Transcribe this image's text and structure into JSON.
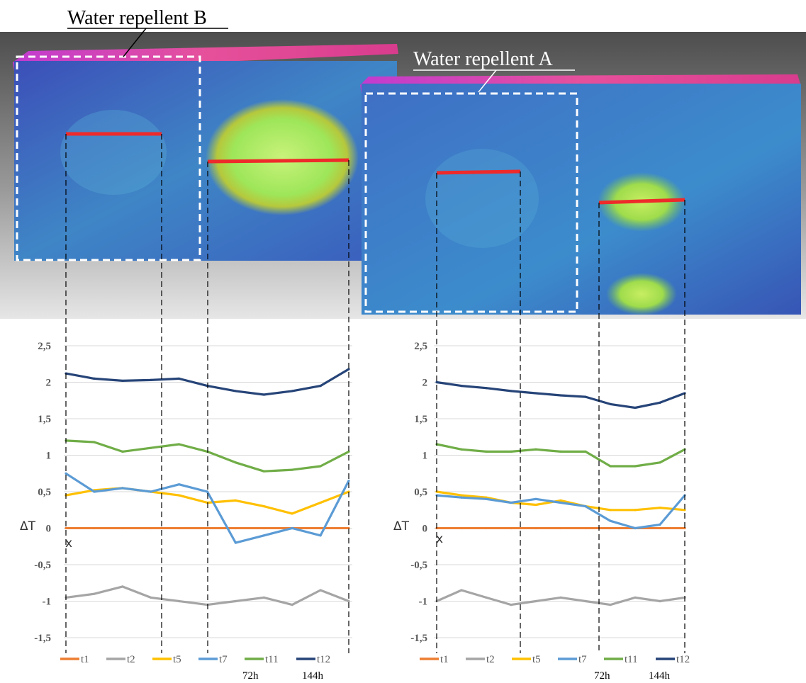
{
  "labels": {
    "repellent_b": "Water repellent B",
    "repellent_a": "Water repellent A"
  },
  "chart_data": [
    {
      "type": "line",
      "name": "Water repellent B",
      "ylabel": "ΔT",
      "xlabel": "x",
      "ylim": [
        -1.5,
        2.5
      ],
      "yticks": [
        "2,5",
        "2",
        "1,5",
        "1",
        "0,5",
        "0",
        "-0,5",
        "-1",
        "-1,5"
      ],
      "ytick_values": [
        2.5,
        2,
        1.5,
        1,
        0.5,
        0,
        -0.5,
        -1,
        -1.5
      ],
      "x": [
        0,
        10,
        20,
        30,
        40,
        50,
        60,
        70,
        80,
        90,
        100
      ],
      "grid": true,
      "legend_position": "bottom",
      "time_labels": [
        "72h",
        "144h"
      ],
      "series": [
        {
          "name": "t1",
          "color": "#ED7D31",
          "values": [
            0,
            0,
            0,
            0,
            0,
            0,
            0,
            0,
            0,
            0,
            0
          ]
        },
        {
          "name": "t2",
          "color": "#A5A5A5",
          "values": [
            -0.95,
            -0.9,
            -0.8,
            -0.95,
            -1.0,
            -1.05,
            -1.0,
            -0.95,
            -1.05,
            -0.85,
            -1.0
          ]
        },
        {
          "name": "t5",
          "color": "#FFC000",
          "values": [
            0.45,
            0.52,
            0.55,
            0.5,
            0.45,
            0.35,
            0.38,
            0.3,
            0.2,
            0.35,
            0.5
          ]
        },
        {
          "name": "t7",
          "color": "#5B9BD5",
          "values": [
            0.75,
            0.5,
            0.55,
            0.5,
            0.6,
            0.5,
            -0.2,
            -0.1,
            0.0,
            -0.1,
            0.65
          ]
        },
        {
          "name": "t11",
          "color": "#70AD47",
          "values": [
            1.2,
            1.18,
            1.05,
            1.1,
            1.15,
            1.05,
            0.9,
            0.78,
            0.8,
            0.85,
            1.05
          ]
        },
        {
          "name": "t12",
          "color": "#264478",
          "values": [
            2.12,
            2.05,
            2.02,
            2.03,
            2.05,
            1.95,
            1.88,
            1.83,
            1.88,
            1.95,
            2.18
          ]
        }
      ]
    },
    {
      "type": "line",
      "name": "Water repellent A",
      "ylabel": "ΔT",
      "xlabel": "x",
      "ylim": [
        -1.5,
        2.5
      ],
      "yticks": [
        "2,5",
        "2",
        "1,5",
        "1",
        "0,5",
        "0",
        "-0,5",
        "-1",
        "-1,5"
      ],
      "ytick_values": [
        2.5,
        2,
        1.5,
        1,
        0.5,
        0,
        -0.5,
        -1,
        -1.5
      ],
      "x": [
        0,
        10,
        20,
        30,
        40,
        50,
        60,
        70,
        80,
        90,
        100
      ],
      "grid": true,
      "legend_position": "bottom",
      "time_labels": [
        "72h",
        "144h"
      ],
      "series": [
        {
          "name": "t1",
          "color": "#ED7D31",
          "values": [
            0,
            0,
            0,
            0,
            0,
            0,
            0,
            0,
            0,
            0,
            0
          ]
        },
        {
          "name": "t2",
          "color": "#A5A5A5",
          "values": [
            -1.0,
            -0.85,
            -0.95,
            -1.05,
            -1.0,
            -0.95,
            -1.0,
            -1.05,
            -0.95,
            -1.0,
            -0.95
          ]
        },
        {
          "name": "t5",
          "color": "#FFC000",
          "values": [
            0.5,
            0.45,
            0.42,
            0.35,
            0.32,
            0.38,
            0.3,
            0.25,
            0.25,
            0.28,
            0.25
          ]
        },
        {
          "name": "t7",
          "color": "#5B9BD5",
          "values": [
            0.45,
            0.42,
            0.4,
            0.35,
            0.4,
            0.35,
            0.3,
            0.1,
            0.0,
            0.05,
            0.45
          ]
        },
        {
          "name": "t11",
          "color": "#70AD47",
          "values": [
            1.15,
            1.08,
            1.05,
            1.05,
            1.08,
            1.05,
            1.05,
            0.85,
            0.85,
            0.9,
            1.08
          ]
        },
        {
          "name": "t12",
          "color": "#264478",
          "values": [
            2.0,
            1.95,
            1.92,
            1.88,
            1.85,
            1.82,
            1.8,
            1.7,
            1.65,
            1.72,
            1.85
          ]
        }
      ]
    }
  ]
}
